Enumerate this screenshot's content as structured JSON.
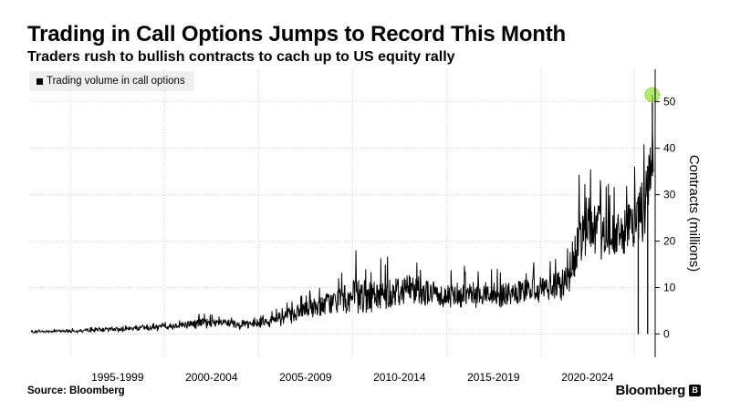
{
  "header": {
    "title": "Trading in Call Options Jumps to Record This Month",
    "subtitle": "Traders rush to bullish contracts to cach up to US equity rally"
  },
  "footer": {
    "source": "Source: Bloomberg",
    "brand": "Bloomberg",
    "brand_mark": "B"
  },
  "chart_data": {
    "type": "line",
    "title": "Trading in Call Options Jumps to Record This Month",
    "subtitle": "Traders rush to bullish contracts to cach up to US equity rally",
    "legend": [
      "Trading volume in call options"
    ],
    "legend_position": "top-left",
    "xlabel": "",
    "ylabel": "Contracts (millions)",
    "y_axis_side": "right",
    "ylim": [
      -5,
      57
    ],
    "yticks": [
      0,
      10,
      20,
      30,
      40,
      50
    ],
    "xlim": [
      1990.8,
      2024.1
    ],
    "x_tick_labels": [
      "1995-1999",
      "2000-2004",
      "2005-2009",
      "2010-2014",
      "2015-2019",
      "2020-2024"
    ],
    "x_tick_label_centers": [
      1995.5,
      2000.5,
      2005.5,
      2010.5,
      2015.5,
      2020.5
    ],
    "x_gridlines": [
      1993,
      1998,
      2003,
      2008,
      2013,
      2018,
      2023
    ],
    "grid": true,
    "highlight": {
      "x": 2024.0,
      "y": 51.5,
      "color": "#9be33a"
    },
    "series": [
      {
        "name": "Trading volume in call options",
        "color": "#000000",
        "x": [
          1990.9,
          1993.0,
          1995.0,
          1997.0,
          1998.5,
          2000.0,
          2001.5,
          2002.5,
          2003.5,
          2004.5,
          2005.5,
          2006.5,
          2007.5,
          2008.3,
          2009.0,
          2010.0,
          2011.0,
          2012.0,
          2013.0,
          2014.0,
          2015.0,
          2016.0,
          2017.0,
          2018.0,
          2019.0,
          2019.5,
          2020.0,
          2020.5,
          2021.0,
          2021.5,
          2022.0,
          2022.5,
          2023.0,
          2023.5,
          2024.0
        ],
        "y": [
          0.5,
          0.7,
          1.0,
          1.3,
          1.8,
          2.5,
          2.3,
          2.2,
          2.8,
          4.0,
          5.0,
          6.5,
          7.5,
          8.0,
          8.0,
          9.0,
          10.0,
          9.0,
          8.5,
          9.0,
          9.0,
          8.5,
          9.0,
          10.0,
          10.5,
          12.0,
          20.0,
          25.0,
          23.0,
          22.0,
          21.0,
          22.0,
          24.0,
          27.0,
          40.0
        ],
        "low": [
          0.1,
          0.2,
          0.4,
          0.5,
          0.8,
          1.2,
          1.0,
          1.0,
          1.3,
          1.8,
          2.5,
          3.5,
          4.5,
          5.0,
          4.5,
          5.5,
          6.0,
          5.5,
          5.5,
          5.5,
          5.5,
          5.5,
          6.0,
          6.5,
          7.0,
          7.5,
          13.0,
          17.0,
          16.0,
          15.5,
          15.0,
          16.0,
          18.0,
          20.0,
          28.0
        ],
        "high": [
          1.0,
          1.3,
          1.8,
          2.2,
          2.8,
          4.5,
          3.8,
          3.6,
          4.5,
          7.0,
          9.0,
          12.0,
          15.0,
          20.0,
          16.0,
          17.0,
          18.0,
          15.0,
          14.0,
          15.0,
          15.0,
          14.0,
          15.0,
          16.0,
          17.5,
          22.0,
          36.0,
          38.0,
          34.0,
          33.0,
          32.0,
          34.0,
          38.0,
          45.0,
          52.0
        ],
        "drops": [
          {
            "x": 2023.2,
            "y": 0
          },
          {
            "x": 2023.7,
            "y": 0
          }
        ]
      }
    ]
  }
}
